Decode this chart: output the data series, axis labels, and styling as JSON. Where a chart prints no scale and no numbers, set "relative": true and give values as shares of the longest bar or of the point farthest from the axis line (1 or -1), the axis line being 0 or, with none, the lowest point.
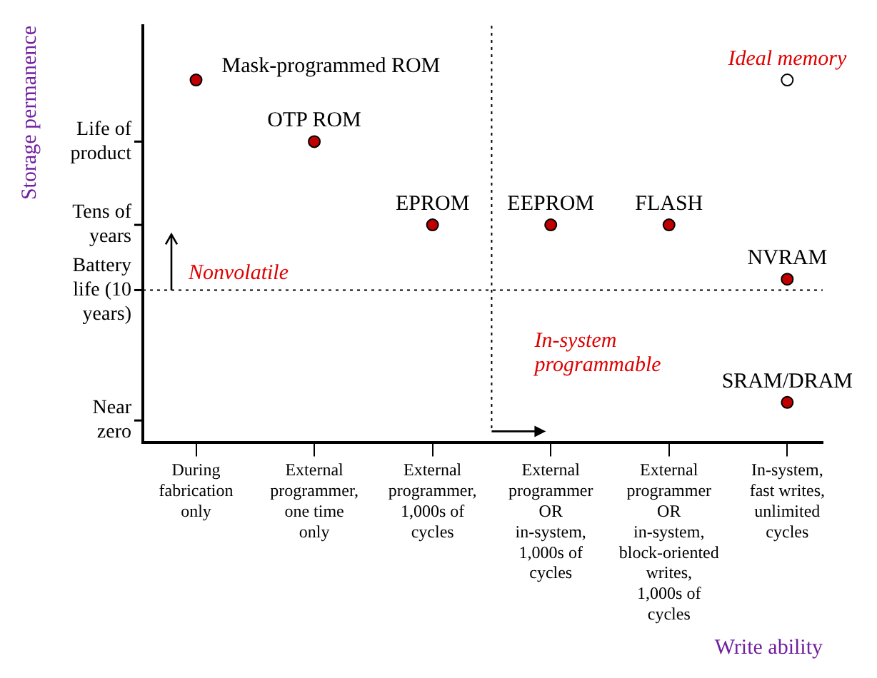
{
  "chart_data": {
    "type": "scatter",
    "xlabel": "Write ability",
    "ylabel": "Storage permanence",
    "categories": [
      "During fabrication only",
      "External programmer, one time only",
      "External programmer, 1,000s of cycles",
      "External programmer OR in-system, 1,000s of cycles",
      "External programmer OR in-system, block-oriented writes, 1,000s of cycles",
      "In-system, fast writes, unlimited cycles"
    ],
    "series": [
      {
        "color": "#c00000",
        "x": [
          "During fabrication only",
          "External programmer, one time only",
          "External programmer, 1,000s of cycles",
          "External programmer OR in-system, 1,000s of cycles",
          "External programmer OR in-system, block-oriented writes, 1,000s of cycles",
          "In-system, fast writes, unlimited cycles",
          "In-system, fast writes, unlimited cycles"
        ],
        "values": [
          1,
          0.83,
          0.6,
          0.6,
          0.6,
          0.45,
          0.11
        ]
      },
      {
        "name": "Ideal memory",
        "color": "#ffffff",
        "x": [
          "In-system, fast writes, unlimited cycles"
        ],
        "values": [
          1
        ]
      }
    ],
    "relative": true,
    "ref_lines": [
      {
        "axis": "y",
        "value": 0.42,
        "color": "#000000",
        "line_style": "dotted"
      }
    ],
    "annotations": [
      {
        "text": "Mask-programmed ROM",
        "x": "During fabrication only",
        "y": 1
      },
      {
        "text": "OTP ROM",
        "x": "External programmer, one time only",
        "y": 0.83
      },
      {
        "text": "EPROM",
        "x": "External programmer, 1,000s of cycles",
        "y": 0.6
      },
      {
        "text": "EEPROM",
        "x": "External programmer OR in-system, 1,000s of cycles",
        "y": 0.6
      },
      {
        "text": "FLASH",
        "x": "External programmer OR in-system, block-oriented writes, 1,000s of cycles",
        "y": 0.6
      },
      {
        "text": "NVRAM",
        "x": "In-system, fast writes, unlimited cycles",
        "y": 0.45
      },
      {
        "text": "SRAM/DRAM",
        "x": "In-system, fast writes, unlimited cycles",
        "y": 0.11
      },
      "Life of product",
      "Tens of years",
      "Battery life (10 years)",
      "Near zero",
      "Nonvolatile",
      "In-system programmable"
    ],
    "grid": false,
    "legend": false,
    "marker": "circle"
  }
}
